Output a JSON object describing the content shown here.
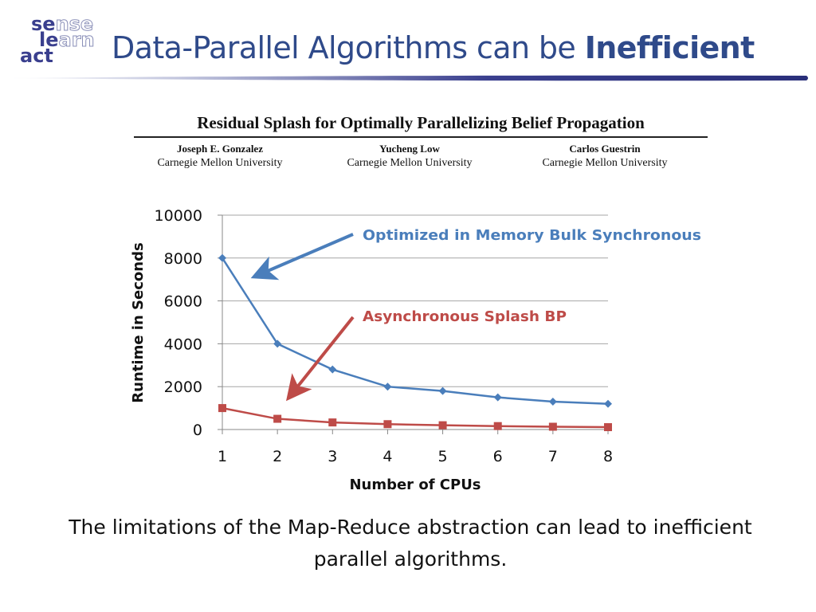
{
  "logo": {
    "line1": {
      "dark": "se",
      "light": "nse"
    },
    "line2": {
      "dark": "le",
      "light": "arn"
    },
    "line3": {
      "dark": "act",
      "light": ""
    }
  },
  "slide_title": {
    "normal": "Data-Parallel Algorithms can be ",
    "bold": "Inefficient"
  },
  "paper": {
    "title": "Residual Splash for Optimally Parallelizing Belief Propagation",
    "authors": [
      {
        "name": "Joseph E. Gonzalez",
        "affiliation": "Carnegie Mellon University"
      },
      {
        "name": "Yucheng Low",
        "affiliation": "Carnegie Mellon University"
      },
      {
        "name": "Carlos Guestrin",
        "affiliation": "Carnegie Mellon University"
      }
    ]
  },
  "colors": {
    "title": "#2f4a8a",
    "blue_series": "#4a7ebb",
    "red_series": "#be4b48",
    "grid": "#a6a6a6"
  },
  "chart_data": {
    "type": "line",
    "title": "",
    "xlabel": "Number of CPUs",
    "ylabel": "Runtime in Seconds",
    "x": [
      1,
      2,
      3,
      4,
      5,
      6,
      7,
      8
    ],
    "ylim": [
      0,
      10000
    ],
    "yticks": [
      0,
      2000,
      4000,
      6000,
      8000,
      10000
    ],
    "grid": true,
    "series": [
      {
        "name": "Optimized in Memory Bulk Synchronous",
        "color": "#4a7ebb",
        "marker": "diamond",
        "values": [
          8000,
          4000,
          2800,
          2000,
          1800,
          1500,
          1300,
          1200
        ]
      },
      {
        "name": "Asynchronous Splash BP",
        "color": "#be4b48",
        "marker": "square",
        "values": [
          1000,
          500,
          330,
          250,
          200,
          160,
          130,
          110
        ]
      }
    ]
  },
  "caption": "The limitations of the Map-Reduce abstraction can lead to inefficient parallel algorithms."
}
